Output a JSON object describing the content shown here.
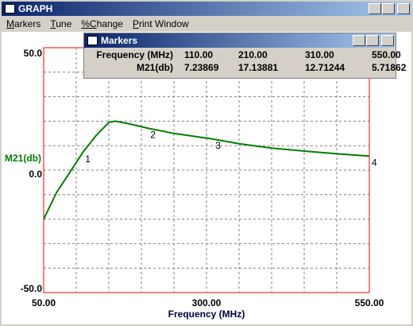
{
  "window": {
    "title": "GRAPH",
    "menu": [
      "Markers",
      "Tune",
      "%Change",
      "Print Window"
    ]
  },
  "markers_window": {
    "title": "Markers",
    "rows": [
      [
        "Frequency (MHz)",
        "110.00",
        "210.00",
        "310.00",
        "550.00"
      ],
      [
        "M21(db)",
        "7.23869",
        "17.13881",
        "12.71244",
        "5.71862"
      ]
    ]
  },
  "chart_data": {
    "type": "line",
    "x_label": "Frequency (MHz)",
    "y_label": "M21(db)",
    "xlim": [
      50,
      550
    ],
    "ylim": [
      -50,
      50
    ],
    "xticks": [
      {
        "value": 50,
        "label": "50.00"
      },
      {
        "value": 300,
        "label": "300.00"
      },
      {
        "value": 550,
        "label": "550.00"
      }
    ],
    "yticks": [
      {
        "value": -50,
        "label": "-50.0"
      },
      {
        "value": 0,
        "label": "0.0"
      },
      {
        "value": 50,
        "label": "50.0"
      }
    ],
    "xgrid": [
      100,
      150,
      200,
      250,
      300,
      350,
      400,
      450,
      500
    ],
    "ygrid": [
      -40,
      -30,
      -20,
      -10,
      0,
      10,
      20,
      30,
      40
    ],
    "grid": true,
    "series": [
      {
        "name": "M21(db)",
        "color": "#007f00",
        "x": [
          50,
          70,
          90,
          110,
          130,
          150,
          160,
          180,
          210,
          250,
          310,
          350,
          400,
          450,
          500,
          550
        ],
        "values": [
          -20,
          -9,
          -1,
          7.23869,
          14,
          19.5,
          20,
          19,
          17.13881,
          15,
          12.71244,
          10.8,
          9,
          7.8,
          6.7,
          5.71862
        ]
      }
    ],
    "markers": [
      {
        "label": "1",
        "x": 110,
        "y": 7.23869
      },
      {
        "label": "2",
        "x": 210,
        "y": 17.13881
      },
      {
        "label": "3",
        "x": 310,
        "y": 12.71244
      },
      {
        "label": "4",
        "x": 550,
        "y": 5.71862
      }
    ]
  }
}
